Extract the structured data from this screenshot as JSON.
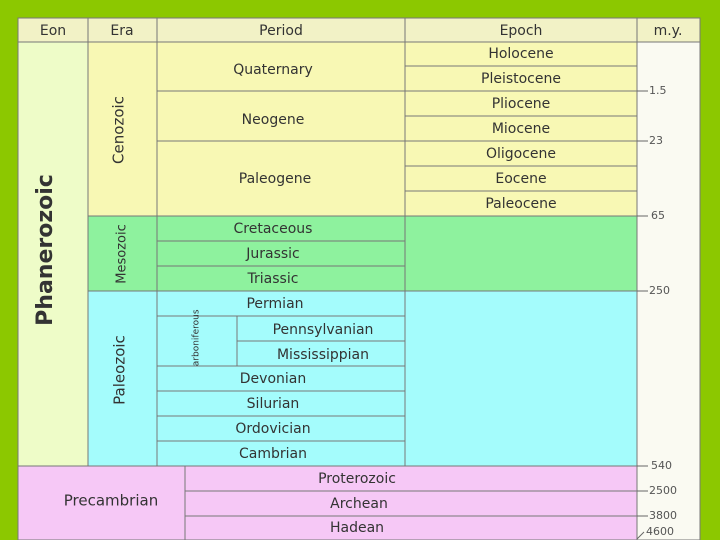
{
  "header": {
    "columns": [
      "Eon",
      "Era",
      "Period",
      "Epoch",
      "m.y."
    ]
  },
  "eons": [
    "Phanerozoic",
    "Precambrian"
  ],
  "eras": [
    "Cenozoic",
    "Mesozoic",
    "Paleozoic"
  ],
  "periods": [
    "Quaternary",
    "Neogene",
    "Paleogene",
    "Cretaceous",
    "Jurassic",
    "Triassic",
    "Permian",
    "Carboniferous",
    "Devonian",
    "Silurian",
    "Ordovician",
    "Cambrian",
    "Proterozoic",
    "Archean",
    "Hadean"
  ],
  "subperiods": [
    "Pennsylvanian",
    "Mississippian"
  ],
  "epochs": [
    "Holocene",
    "Pleistocene",
    "Pliocene",
    "Miocene",
    "Oligocene",
    "Eocene",
    "Paleocene"
  ],
  "boundaries": [
    1.5,
    23,
    65,
    250,
    540,
    2500,
    3800,
    4600
  ]
}
